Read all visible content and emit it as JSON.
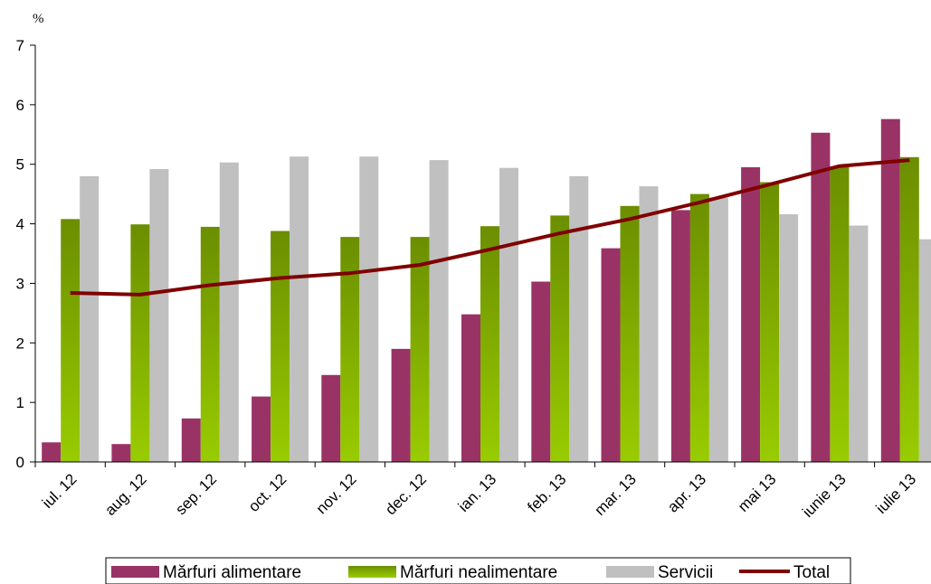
{
  "chart_data": {
    "type": "bar",
    "unit_label": "%",
    "categories": [
      "iul. 12",
      "aug. 12",
      "sep. 12",
      "oct. 12",
      "nov. 12",
      "dec. 12",
      "ian. 13",
      "feb. 13",
      "mar. 13",
      "apr. 13",
      "mai 13",
      "iunie 13",
      "iulie 13"
    ],
    "series": [
      {
        "name": "Mărfuri alimentare",
        "kind": "bar",
        "color": "#993366",
        "values": [
          0.33,
          0.3,
          0.73,
          1.1,
          1.46,
          1.9,
          2.48,
          3.03,
          3.59,
          4.23,
          4.95,
          5.53,
          5.76
        ]
      },
      {
        "name": "Mărfuri nealimentare",
        "kind": "bar",
        "color": "#6b8e00",
        "color_light": "#99cc00",
        "values": [
          4.08,
          3.99,
          3.95,
          3.88,
          3.78,
          3.78,
          3.96,
          4.14,
          4.3,
          4.5,
          4.7,
          4.96,
          5.12
        ]
      },
      {
        "name": "Servicii",
        "kind": "bar",
        "color": "#c0c0c0",
        "values": [
          4.8,
          4.92,
          5.03,
          5.13,
          5.13,
          5.07,
          4.94,
          4.8,
          4.63,
          4.44,
          4.16,
          3.97,
          3.74
        ]
      },
      {
        "name": "Total",
        "kind": "line",
        "color": "#800000",
        "values": [
          2.84,
          2.81,
          2.97,
          3.09,
          3.17,
          3.31,
          3.57,
          3.84,
          4.08,
          4.36,
          4.66,
          4.97,
          5.07
        ]
      }
    ],
    "ylim": [
      0,
      7
    ],
    "yticks": [
      "0",
      "1",
      "2",
      "3",
      "4",
      "5",
      "6",
      "7"
    ],
    "grid": false,
    "legend_position": "bottom"
  }
}
